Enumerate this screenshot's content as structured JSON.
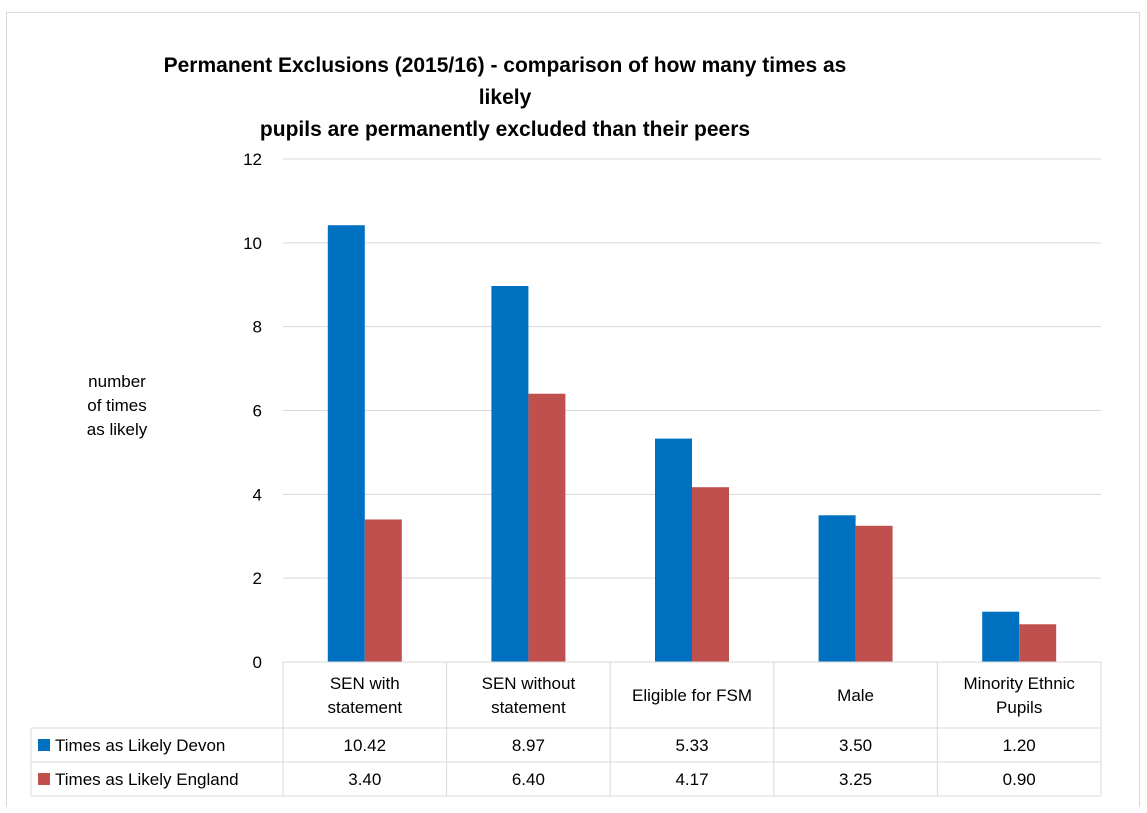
{
  "chart_data": {
    "type": "bar",
    "title_line1": "Permanent Exclusions (2015/16) - comparison of how many times as likely",
    "title_line2": "pupils are permanently excluded than their peers",
    "ylabel_lines": [
      "number",
      "of times",
      "as likely"
    ],
    "ylim": [
      0,
      12
    ],
    "yticks": [
      0,
      2,
      4,
      6,
      8,
      10,
      12
    ],
    "grid": true,
    "legend_placement": "data table",
    "categories": [
      [
        "SEN with",
        "statement"
      ],
      [
        "SEN without",
        "statement"
      ],
      [
        "Eligible for FSM"
      ],
      [
        "Male"
      ],
      [
        "Minority Ethnic",
        "Pupils"
      ]
    ],
    "series": [
      {
        "name": "Times as Likely Devon",
        "color": "#0070c0",
        "values": [
          10.42,
          8.97,
          5.33,
          3.5,
          1.2
        ],
        "labels": [
          "10.42",
          "8.97",
          "5.33",
          "3.50",
          "1.20"
        ]
      },
      {
        "name": "Times as Likely England",
        "color": "#c0504d",
        "values": [
          3.4,
          6.4,
          4.17,
          3.25,
          0.9
        ],
        "labels": [
          "3.40",
          "6.40",
          "4.17",
          "3.25",
          "0.90"
        ]
      }
    ]
  }
}
